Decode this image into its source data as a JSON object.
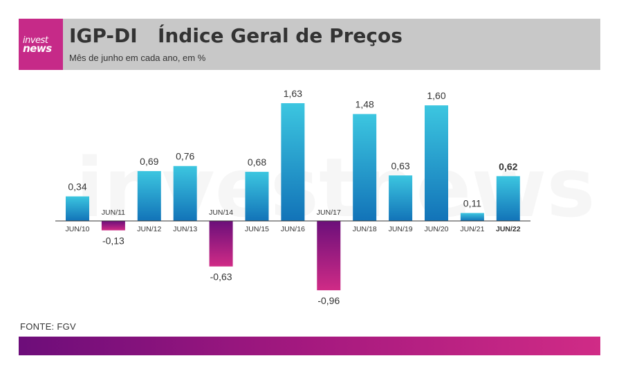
{
  "header": {
    "logo_line1": "invest",
    "logo_line2": "news",
    "title": "IGP-DI   Índice Geral de Preços",
    "subtitle": "Mês de junho em cada ano, em %"
  },
  "watermark": "investnews",
  "source": "FONTE: FGV",
  "colors": {
    "positive_top": "#3cc6e0",
    "positive_bottom": "#1273b8",
    "negative_top": "#6b0f7a",
    "negative_bottom": "#d02b86",
    "header_bg": "#c8c8c8",
    "logo_bg": "#c62a88"
  },
  "chart_data": {
    "type": "bar",
    "categories": [
      "JUN/10",
      "JUN/11",
      "JUN/12",
      "JUN/13",
      "JUN/14",
      "JUN/15",
      "JUN/16",
      "JUN/17",
      "JUN/18",
      "JUN/19",
      "JUN/20",
      "JUN/21",
      "JUN/22"
    ],
    "values": [
      0.34,
      -0.13,
      0.69,
      0.76,
      -0.63,
      0.68,
      1.63,
      -0.96,
      1.48,
      0.63,
      1.6,
      0.11,
      0.62
    ],
    "value_labels": [
      "0,34",
      "-0,13",
      "0,69",
      "0,76",
      "-0,63",
      "0,68",
      "1,63",
      "-0,96",
      "1,48",
      "0,63",
      "1,60",
      "0,11",
      "0,62"
    ],
    "highlight": "JUN/22",
    "title": "IGP-DI   Índice Geral de Preços",
    "subtitle": "Mês de junho em cada ano, em %",
    "xlabel": "",
    "ylabel": "",
    "grid": false,
    "legend": "none"
  }
}
